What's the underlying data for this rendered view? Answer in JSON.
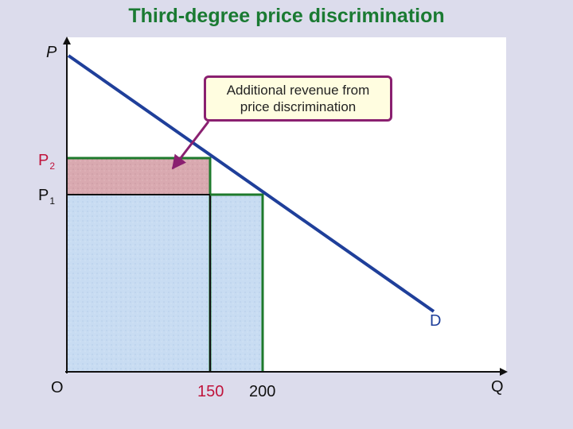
{
  "title": "Third-degree price discrimination",
  "axes": {
    "y_label": "P",
    "x_label": "Q",
    "origin": "O"
  },
  "price_labels": {
    "p2_main": "P",
    "p2_sub": "2",
    "p1_main": "P",
    "p1_sub": "1"
  },
  "quantity_labels": {
    "q_150": "150",
    "q_200": "200"
  },
  "demand_label": "D",
  "callout": {
    "line1": "Additional revenue from",
    "line2": "price discrimination"
  },
  "colors": {
    "demand": "#1f3f9a",
    "price_lines": "#1e7a2c",
    "extra_revenue": "#d9a9b0",
    "base_revenue": "#c8dcf2",
    "callout_border": "#8a2070",
    "callout_fill": "#fffde0",
    "title": "#1a7a32"
  }
}
